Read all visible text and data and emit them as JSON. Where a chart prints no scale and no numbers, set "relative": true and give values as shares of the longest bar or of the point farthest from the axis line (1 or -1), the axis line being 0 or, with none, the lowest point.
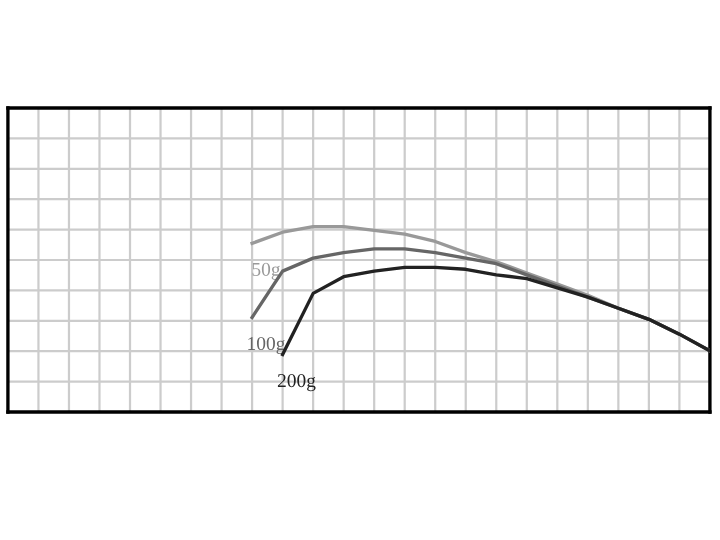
{
  "chart_data": {
    "type": "line",
    "relative": true,
    "grid": true,
    "legend": false,
    "marker": "none",
    "line_style": "solid",
    "categories": [
      null,
      null,
      null,
      null,
      null,
      null,
      null,
      null,
      null,
      null,
      null,
      null,
      null,
      null,
      null,
      null,
      null,
      null,
      null,
      null,
      null,
      null,
      null,
      null
    ],
    "series": [
      {
        "name": "50g",
        "color": "#999999",
        "values": [
          null,
          null,
          null,
          null,
          null,
          null,
          null,
          null,
          0.91,
          0.97,
          1.0,
          1.0,
          0.98,
          0.96,
          0.92,
          0.86,
          0.81,
          0.75,
          0.69,
          0.63,
          0.56,
          0.5,
          0.42,
          0.33
        ]
      },
      {
        "name": "100g",
        "color": "#666666",
        "values": [
          null,
          null,
          null,
          null,
          null,
          null,
          null,
          null,
          0.51,
          0.76,
          0.83,
          0.86,
          0.88,
          0.88,
          0.86,
          0.83,
          0.8,
          0.74,
          0.68,
          0.62,
          0.56,
          0.5,
          0.42,
          0.33
        ]
      },
      {
        "name": "200g",
        "color": "#222222",
        "values": [
          null,
          null,
          null,
          null,
          null,
          null,
          null,
          null,
          null,
          0.31,
          0.64,
          0.73,
          0.76,
          0.78,
          0.78,
          0.77,
          0.74,
          0.72,
          0.67,
          0.62,
          0.56,
          0.5,
          0.42,
          0.33
        ]
      }
    ]
  }
}
